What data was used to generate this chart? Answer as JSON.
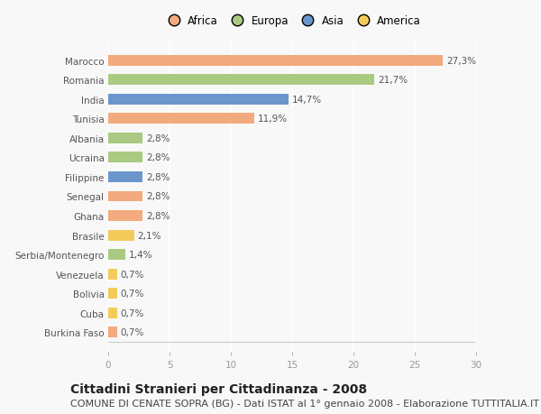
{
  "countries": [
    "Marocco",
    "Romania",
    "India",
    "Tunisia",
    "Albania",
    "Ucraina",
    "Filippine",
    "Senegal",
    "Ghana",
    "Brasile",
    "Serbia/Montenegro",
    "Venezuela",
    "Bolivia",
    "Cuba",
    "Burkina Faso"
  ],
  "values": [
    27.3,
    21.7,
    14.7,
    11.9,
    2.8,
    2.8,
    2.8,
    2.8,
    2.8,
    2.1,
    1.4,
    0.7,
    0.7,
    0.7,
    0.7
  ],
  "labels": [
    "27,3%",
    "21,7%",
    "14,7%",
    "11,9%",
    "2,8%",
    "2,8%",
    "2,8%",
    "2,8%",
    "2,8%",
    "2,1%",
    "1,4%",
    "0,7%",
    "0,7%",
    "0,7%",
    "0,7%"
  ],
  "continents": [
    "Africa",
    "Europa",
    "Asia",
    "Africa",
    "Europa",
    "Europa",
    "Asia",
    "Africa",
    "Africa",
    "America",
    "Europa",
    "America",
    "America",
    "America",
    "Africa"
  ],
  "colors": {
    "Africa": "#F2AA7E",
    "Europa": "#AACA82",
    "Asia": "#6B96CC",
    "America": "#F2CB5A"
  },
  "legend_order": [
    "Africa",
    "Europa",
    "Asia",
    "America"
  ],
  "legend_colors": [
    "#F2AA7E",
    "#AACA82",
    "#6B96CC",
    "#F2CB5A"
  ],
  "title": "Cittadini Stranieri per Cittadinanza - 2008",
  "subtitle": "COMUNE DI CENATE SOPRA (BG) - Dati ISTAT al 1° gennaio 2008 - Elaborazione TUTTITALIA.IT",
  "xlim": [
    0,
    30
  ],
  "xticks": [
    0,
    5,
    10,
    15,
    20,
    25,
    30
  ],
  "bg_color": "#F8F8F8",
  "bar_height": 0.55,
  "title_fontsize": 10,
  "subtitle_fontsize": 8,
  "label_fontsize": 7.5,
  "ytick_fontsize": 7.5,
  "xtick_fontsize": 7.5
}
